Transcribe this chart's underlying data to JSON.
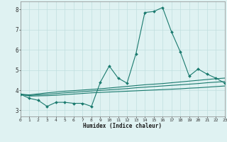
{
  "xlabel": "Humidex (Indice chaleur)",
  "x": [
    0,
    1,
    2,
    3,
    4,
    5,
    6,
    7,
    8,
    9,
    10,
    11,
    12,
    13,
    14,
    15,
    16,
    17,
    18,
    19,
    20,
    21,
    22,
    23
  ],
  "y_main": [
    3.8,
    3.6,
    3.5,
    3.2,
    3.4,
    3.4,
    3.35,
    3.35,
    3.2,
    4.4,
    5.2,
    4.6,
    4.35,
    5.8,
    7.85,
    7.9,
    8.1,
    6.9,
    5.9,
    4.7,
    5.05,
    4.8,
    4.6,
    4.35
  ],
  "y_upper": [
    3.8,
    3.77,
    3.82,
    3.87,
    3.91,
    3.95,
    3.98,
    4.01,
    4.04,
    4.07,
    4.11,
    4.15,
    4.19,
    4.23,
    4.27,
    4.3,
    4.33,
    4.37,
    4.41,
    4.45,
    4.49,
    4.53,
    4.57,
    4.6
  ],
  "y_mid": [
    3.8,
    3.74,
    3.77,
    3.8,
    3.83,
    3.87,
    3.9,
    3.93,
    3.96,
    3.99,
    4.02,
    4.05,
    4.08,
    4.12,
    4.15,
    4.18,
    4.21,
    4.24,
    4.27,
    4.3,
    4.33,
    4.37,
    4.4,
    4.43
  ],
  "y_lower": [
    3.8,
    3.71,
    3.72,
    3.73,
    3.75,
    3.78,
    3.81,
    3.84,
    3.87,
    3.89,
    3.91,
    3.93,
    3.95,
    3.97,
    3.99,
    4.01,
    4.03,
    4.05,
    4.07,
    4.1,
    4.12,
    4.15,
    4.18,
    4.21
  ],
  "line_color": "#1a7a6e",
  "bg_color": "#dff2f2",
  "grid_color": "#c0dede",
  "ylim": [
    2.7,
    8.4
  ],
  "xlim": [
    0,
    23
  ]
}
